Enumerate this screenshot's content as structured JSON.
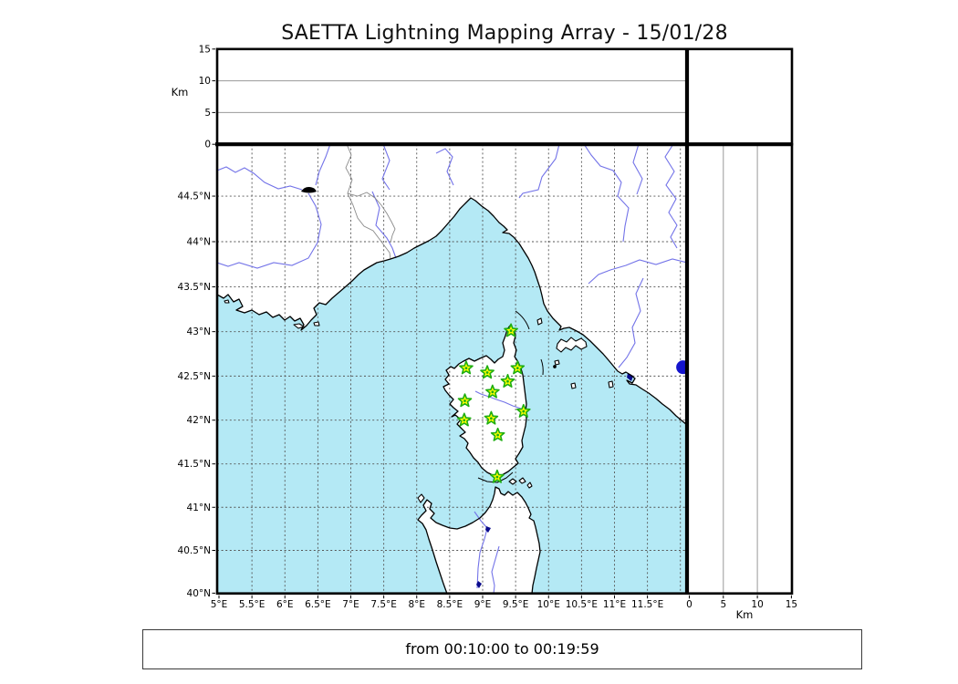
{
  "title": "SAETTA Lightning Mapping Array - 15/01/28",
  "footer": "from 00:10:00 to 00:19:59",
  "altitude_axis": {
    "label": "Km",
    "tick_labels": [
      "0",
      "5",
      "10",
      "15"
    ],
    "tick_values": [
      0,
      5,
      10,
      15
    ],
    "gridline_values": [
      5,
      10
    ],
    "max": 15
  },
  "map_axes": {
    "lat_tick_labels": [
      "44.5°N",
      "44°N",
      "43.5°N",
      "43°N",
      "42.5°N",
      "42°N",
      "41.5°N",
      "41°N",
      "40.5°N",
      "40°N"
    ],
    "lat_tick_values": [
      44.5,
      44,
      43.5,
      43,
      42.5,
      42,
      41.5,
      41,
      40.5,
      40
    ],
    "lat_grid_values": [
      44.5,
      44,
      43.5,
      43,
      42.5,
      42,
      41.5,
      41,
      40.5
    ],
    "lon_tick_labels": [
      "5°E",
      "5.5°E",
      "6°E",
      "6.5°E",
      "7°E",
      "7.5°E",
      "8°E",
      "8.5°E",
      "9°E",
      "9.5°E",
      "10°E",
      "10.5°E",
      "11°E",
      "11.5°E"
    ],
    "lon_tick_values": [
      5,
      5.5,
      6,
      6.5,
      7,
      7.5,
      8,
      8.5,
      9,
      9.5,
      10,
      10.5,
      11,
      11.5
    ],
    "lon_grid_values": [
      5.5,
      6,
      6.5,
      7,
      7.5,
      8,
      8.5,
      9,
      9.5,
      10,
      10.5,
      11,
      11.5,
      12
    ]
  },
  "chart_data": {
    "type": "scatter",
    "projection": "mercator",
    "map_extent": {
      "lon_min": 5,
      "lon_max": 12.1,
      "lat_min": 40,
      "lat_max": 44.96
    },
    "altitude_range_km": [
      0,
      15
    ],
    "stations": [
      {
        "lon": 9.43,
        "lat": 43.01
      },
      {
        "lon": 8.75,
        "lat": 42.59
      },
      {
        "lon": 9.07,
        "lat": 42.54
      },
      {
        "lon": 9.53,
        "lat": 42.59
      },
      {
        "lon": 9.38,
        "lat": 42.44
      },
      {
        "lon": 9.15,
        "lat": 42.32
      },
      {
        "lon": 8.73,
        "lat": 42.22
      },
      {
        "lon": 9.62,
        "lat": 42.1
      },
      {
        "lon": 8.72,
        "lat": 42.0
      },
      {
        "lon": 9.13,
        "lat": 42.02
      },
      {
        "lon": 9.23,
        "lat": 41.83
      },
      {
        "lon": 9.22,
        "lat": 41.35
      }
    ],
    "sources": [
      {
        "lon": 12.04,
        "lat": 42.6
      }
    ]
  },
  "colors": {
    "sea": "#b4e9f5",
    "land": "#ffffff",
    "coast": "#000000",
    "river": "#7373e8",
    "country_border": "#8a8a8a",
    "grid": "#555555",
    "panel_grid": "#999999",
    "star_fill": "#ffff00",
    "star_edge": "#1fae12",
    "source_dot": "#1414cc",
    "lake": "#0a0a8c"
  }
}
